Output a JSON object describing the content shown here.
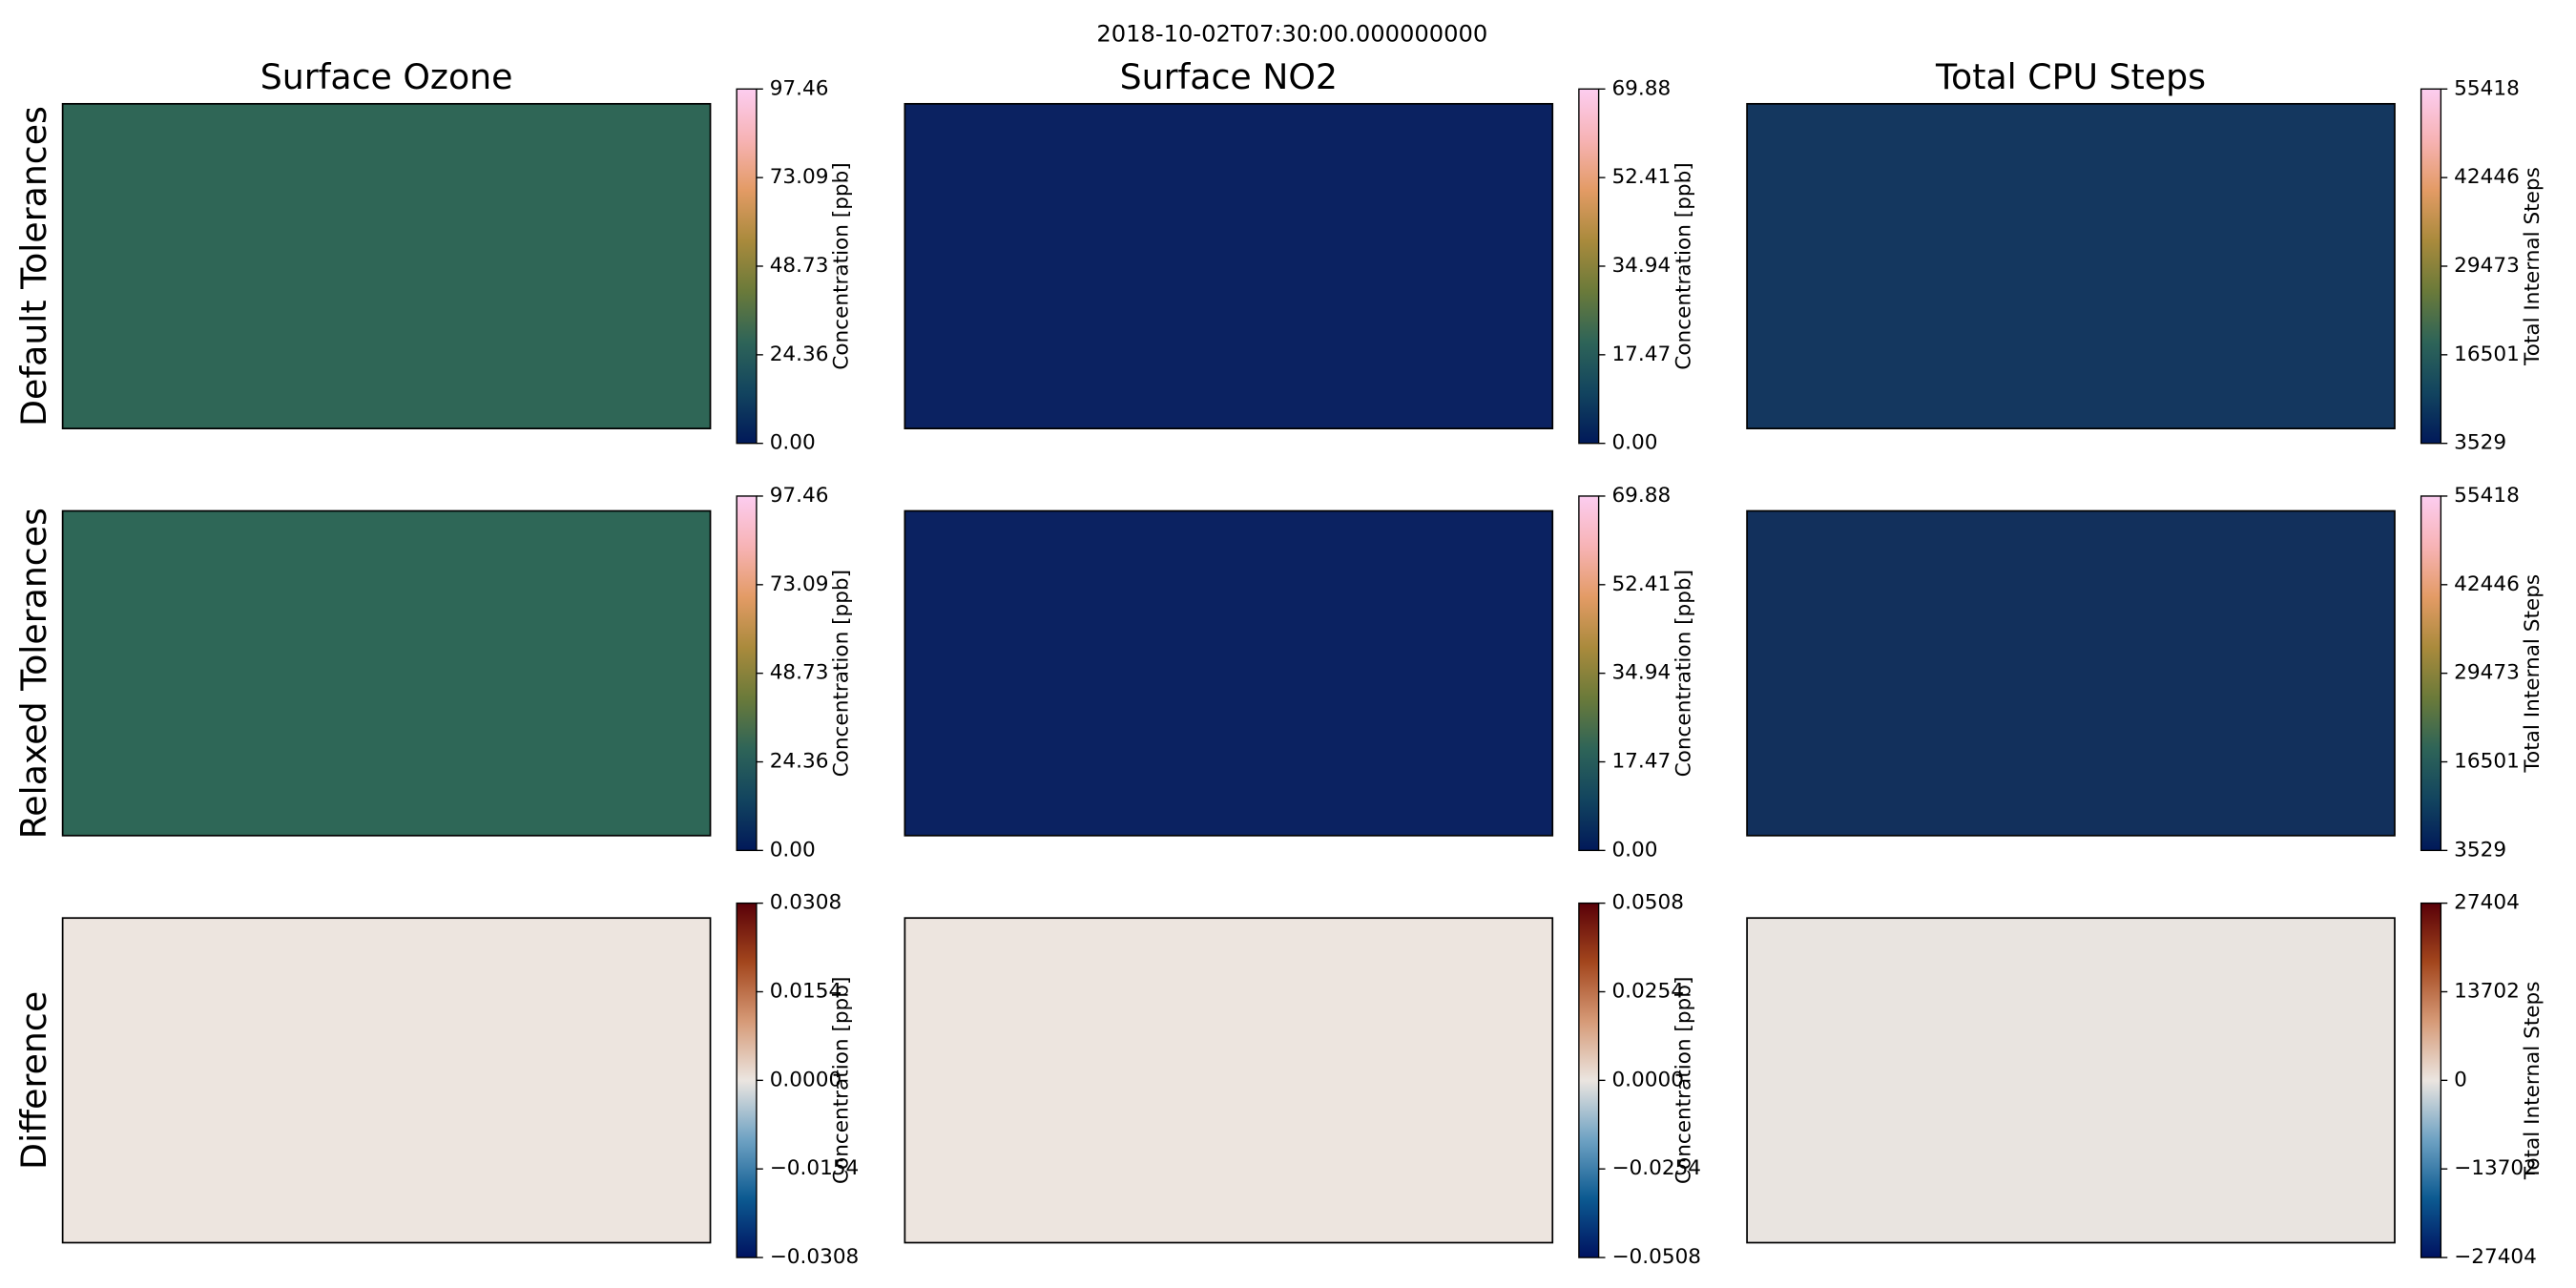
{
  "suptitle": "2018-10-02T07:30:00.000000000",
  "chart_data": [
    {
      "type": "map",
      "title": "Surface Ozone",
      "ylabel": "Default Tolerances",
      "colorbar_label": "Concentration [ppb]",
      "background": "#2f6656",
      "colormap": [
        "#011959",
        "#12445f",
        "#2e6458",
        "#6a7a3a",
        "#a98a3c",
        "#e39b65",
        "#f7b3b5",
        "#fccdf0"
      ],
      "clim": [
        0,
        97.46
      ],
      "cticks": [
        {
          "value": 0,
          "label": "0.00"
        },
        24.36,
        48.73,
        73.09,
        97.46
      ]
    },
    {
      "type": "map",
      "title": "Surface NO2",
      "colorbar_label": "Concentration [ppb]",
      "background": "#0b2261",
      "colormap": [
        "#011959",
        "#12445f",
        "#2e6458",
        "#6a7a3a",
        "#a98a3c",
        "#e39b65",
        "#f7b3b5",
        "#fccdf0"
      ],
      "clim": [
        0,
        69.88
      ],
      "cticks": [
        {
          "value": 0,
          "label": "0.00"
        },
        17.47,
        34.94,
        52.41,
        69.88
      ]
    },
    {
      "type": "map",
      "title": "Total CPU Steps",
      "colorbar_label": "Total Internal Steps",
      "background": "#14375f",
      "colormap": [
        "#011959",
        "#12445f",
        "#2e6458",
        "#6a7a3a",
        "#a98a3c",
        "#e39b65",
        "#f7b3b5",
        "#fccdf0"
      ],
      "clim": [
        3529,
        55418
      ],
      "cticks": [
        3529,
        16501,
        29473,
        42446,
        55418
      ]
    },
    {
      "type": "map",
      "ylabel": "Relaxed Tolerances",
      "colorbar_label": "Concentration [ppb]",
      "background": "#2e6757",
      "colormap": [
        "#011959",
        "#12445f",
        "#2e6458",
        "#6a7a3a",
        "#a98a3c",
        "#e39b65",
        "#f7b3b5",
        "#fccdf0"
      ],
      "clim": [
        0,
        97.46
      ],
      "cticks": [
        {
          "value": 0,
          "label": "0.00"
        },
        24.36,
        48.73,
        73.09,
        97.46
      ]
    },
    {
      "type": "map",
      "colorbar_label": "Concentration [ppb]",
      "background": "#0b2261",
      "colormap": [
        "#011959",
        "#12445f",
        "#2e6458",
        "#6a7a3a",
        "#a98a3c",
        "#e39b65",
        "#f7b3b5",
        "#fccdf0"
      ],
      "clim": [
        0,
        69.88
      ],
      "cticks": [
        {
          "value": 0,
          "label": "0.00"
        },
        17.47,
        34.94,
        52.41,
        69.88
      ]
    },
    {
      "type": "map",
      "colorbar_label": "Total Internal Steps",
      "background": "#12305c",
      "colormap": [
        "#011959",
        "#12445f",
        "#2e6458",
        "#6a7a3a",
        "#a98a3c",
        "#e39b65",
        "#f7b3b5",
        "#fccdf0"
      ],
      "clim": [
        3529,
        55418
      ],
      "cticks": [
        3529,
        16501,
        29473,
        42446,
        55418
      ]
    },
    {
      "type": "map",
      "ylabel": "Difference",
      "colorbar_label": "Concentration [ppb]",
      "background": "#ede5df",
      "colormap": [
        "#001260",
        "#0c5a91",
        "#6fa2c3",
        "#ebe5e0",
        "#d69a77",
        "#a3461d",
        "#590008"
      ],
      "clim": [
        -0.0308,
        0.0308
      ],
      "cticks": [
        {
          "value": -0.0308,
          "label": "−0.0308"
        },
        {
          "value": -0.0154,
          "label": "−0.0154"
        },
        {
          "value": 0,
          "label": "0.0000"
        },
        0.0154,
        0.0308
      ]
    },
    {
      "type": "map",
      "colorbar_label": "Concentration [ppb]",
      "background": "#ede5df",
      "colormap": [
        "#001260",
        "#0c5a91",
        "#6fa2c3",
        "#ebe5e0",
        "#d69a77",
        "#a3461d",
        "#590008"
      ],
      "clim": [
        -0.0508,
        0.0508
      ],
      "cticks": [
        {
          "value": -0.0508,
          "label": "−0.0508"
        },
        {
          "value": -0.0254,
          "label": "−0.0254"
        },
        {
          "value": 0,
          "label": "0.0000"
        },
        0.0254,
        0.0508
      ]
    },
    {
      "type": "map",
      "colorbar_label": "Total Internal Steps",
      "background": "#e9e4e0",
      "colormap": [
        "#001260",
        "#0c5a91",
        "#6fa2c3",
        "#ebe5e0",
        "#d69a77",
        "#a3461d",
        "#590008"
      ],
      "clim": [
        -27404,
        27404
      ],
      "cticks": [
        {
          "value": -27404,
          "label": "−27404"
        },
        {
          "value": -13702,
          "label": "−13702"
        },
        0,
        13702,
        27404
      ]
    }
  ]
}
